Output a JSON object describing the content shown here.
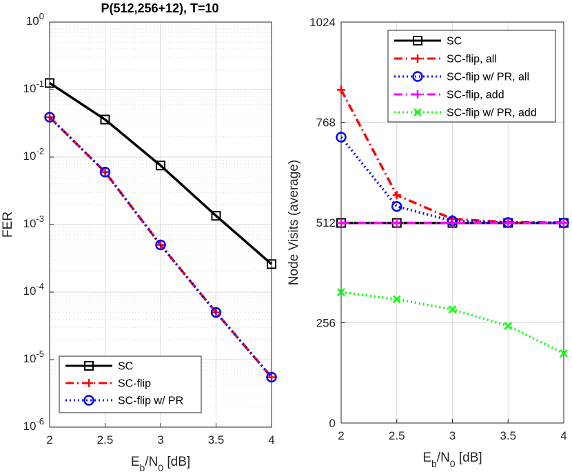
{
  "colors": {
    "sc": "#000000",
    "sc_flip": "#ff0000",
    "sc_flip_pr": "#0000ff",
    "sc_flip_add": "#ff00ff",
    "sc_flip_pr_add": "#00ff00",
    "grid": "#d9d9d9",
    "axis": "#262626"
  },
  "chart_data": [
    {
      "type": "line",
      "title": "P(512,256+12), T=10",
      "xlabel": "E_b/N_0 [dB]",
      "ylabel": "FER",
      "yscale": "log",
      "xlim": [
        2,
        4
      ],
      "ylim": [
        1e-06,
        1
      ],
      "x": [
        2,
        2.5,
        3,
        3.5,
        4
      ],
      "xticks": [
        "2",
        "2.5",
        "3",
        "3.5",
        "4"
      ],
      "yticks": [
        {
          "base": "10",
          "exp": "-6"
        },
        {
          "base": "10",
          "exp": "-5"
        },
        {
          "base": "10",
          "exp": "-4"
        },
        {
          "base": "10",
          "exp": "-3"
        },
        {
          "base": "10",
          "exp": "-2"
        },
        {
          "base": "10",
          "exp": "-1"
        },
        {
          "base": "10",
          "exp": "0"
        }
      ],
      "grid": true,
      "legend_position": "bottom-left",
      "series": [
        {
          "name": "SC",
          "color": "#000000",
          "style": "solid",
          "marker": "square",
          "values": [
            0.125,
            0.036,
            0.0075,
            0.00135,
            0.00026
          ]
        },
        {
          "name": "SC-flip",
          "color": "#ff0000",
          "style": "dashdot",
          "marker": "plus",
          "values": [
            0.039,
            0.006,
            0.0005,
            5e-05,
            5.5e-06
          ]
        },
        {
          "name": "SC-flip w/ PR",
          "color": "#0000ff",
          "style": "dotted",
          "marker": "circle",
          "values": [
            0.039,
            0.006,
            0.0005,
            5e-05,
            5.5e-06
          ]
        }
      ]
    },
    {
      "type": "line",
      "title": "",
      "xlabel": "E_b/N_0 [dB]",
      "ylabel": "Node Visits (average)",
      "yscale": "linear",
      "xlim": [
        2,
        4
      ],
      "ylim": [
        0,
        1024
      ],
      "x": [
        2,
        2.5,
        3,
        3.5,
        4
      ],
      "xticks": [
        "2",
        "2.5",
        "3",
        "3.5",
        "4"
      ],
      "yticks": [
        "0",
        "256",
        "512",
        "768",
        "1024"
      ],
      "ytick_values": [
        0,
        256,
        512,
        768,
        1024
      ],
      "grid": true,
      "legend_position": "top",
      "series": [
        {
          "name": "SC",
          "color": "#000000",
          "style": "solid",
          "marker": "square",
          "values": [
            511,
            511,
            511,
            511,
            511
          ]
        },
        {
          "name": "SC-flip, all",
          "color": "#ff0000",
          "style": "dashdot",
          "marker": "plus",
          "values": [
            851,
            582,
            521,
            513,
            512
          ]
        },
        {
          "name": "SC-flip w/ PR, all",
          "color": "#0000ff",
          "style": "dotted",
          "marker": "circle",
          "values": [
            730,
            553,
            516,
            512,
            511
          ]
        },
        {
          "name": "SC-flip, add",
          "color": "#ff00ff",
          "style": "dashdot",
          "marker": "plus",
          "values": [
            511,
            511,
            511,
            511,
            511
          ]
        },
        {
          "name": "SC-flip w/ PR, add",
          "color": "#00ff00",
          "style": "dotted",
          "marker": "x",
          "values": [
            334,
            316,
            290,
            248,
            178
          ]
        }
      ]
    }
  ]
}
